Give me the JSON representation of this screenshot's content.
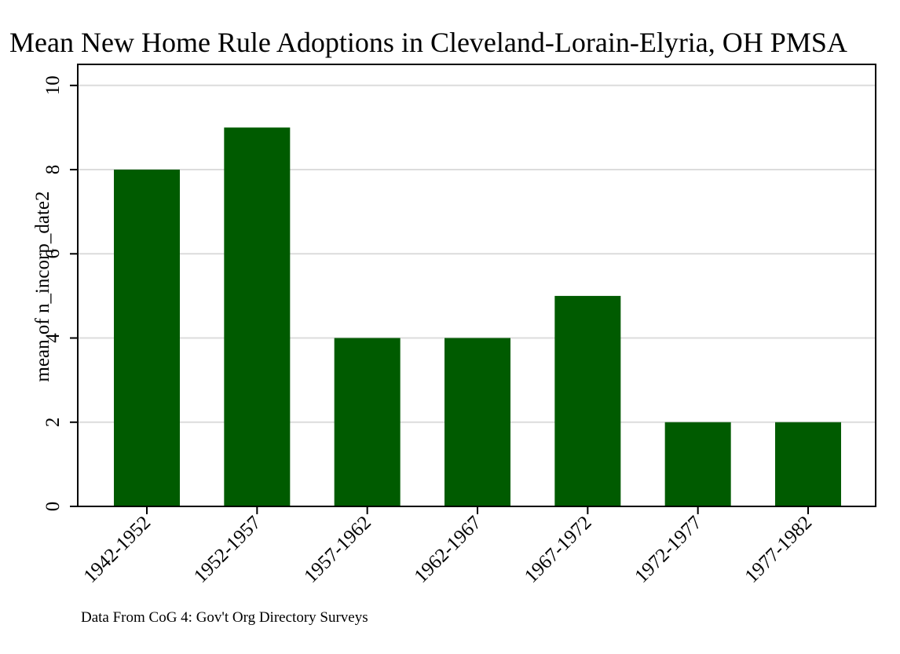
{
  "chart_data": {
    "type": "bar",
    "title": "Mean New Home Rule Adoptions in Cleveland-Lorain-Elyria, OH PMSA",
    "xlabel": "",
    "ylabel": "mean of n_incorp_date2",
    "categories": [
      "1942-1952",
      "1952-1957",
      "1957-1962",
      "1962-1967",
      "1967-1972",
      "1972-1977",
      "1977-1982"
    ],
    "values": [
      8,
      9,
      4,
      4,
      5,
      2,
      2
    ],
    "ylim": [
      0,
      10.5
    ],
    "yticks": [
      "0",
      "2",
      "4",
      "6",
      "8",
      "10"
    ],
    "grid": true,
    "legend": "none",
    "bar_color": "#005b00",
    "note": "Data From CoG 4: Gov't Org Directory Surveys"
  }
}
